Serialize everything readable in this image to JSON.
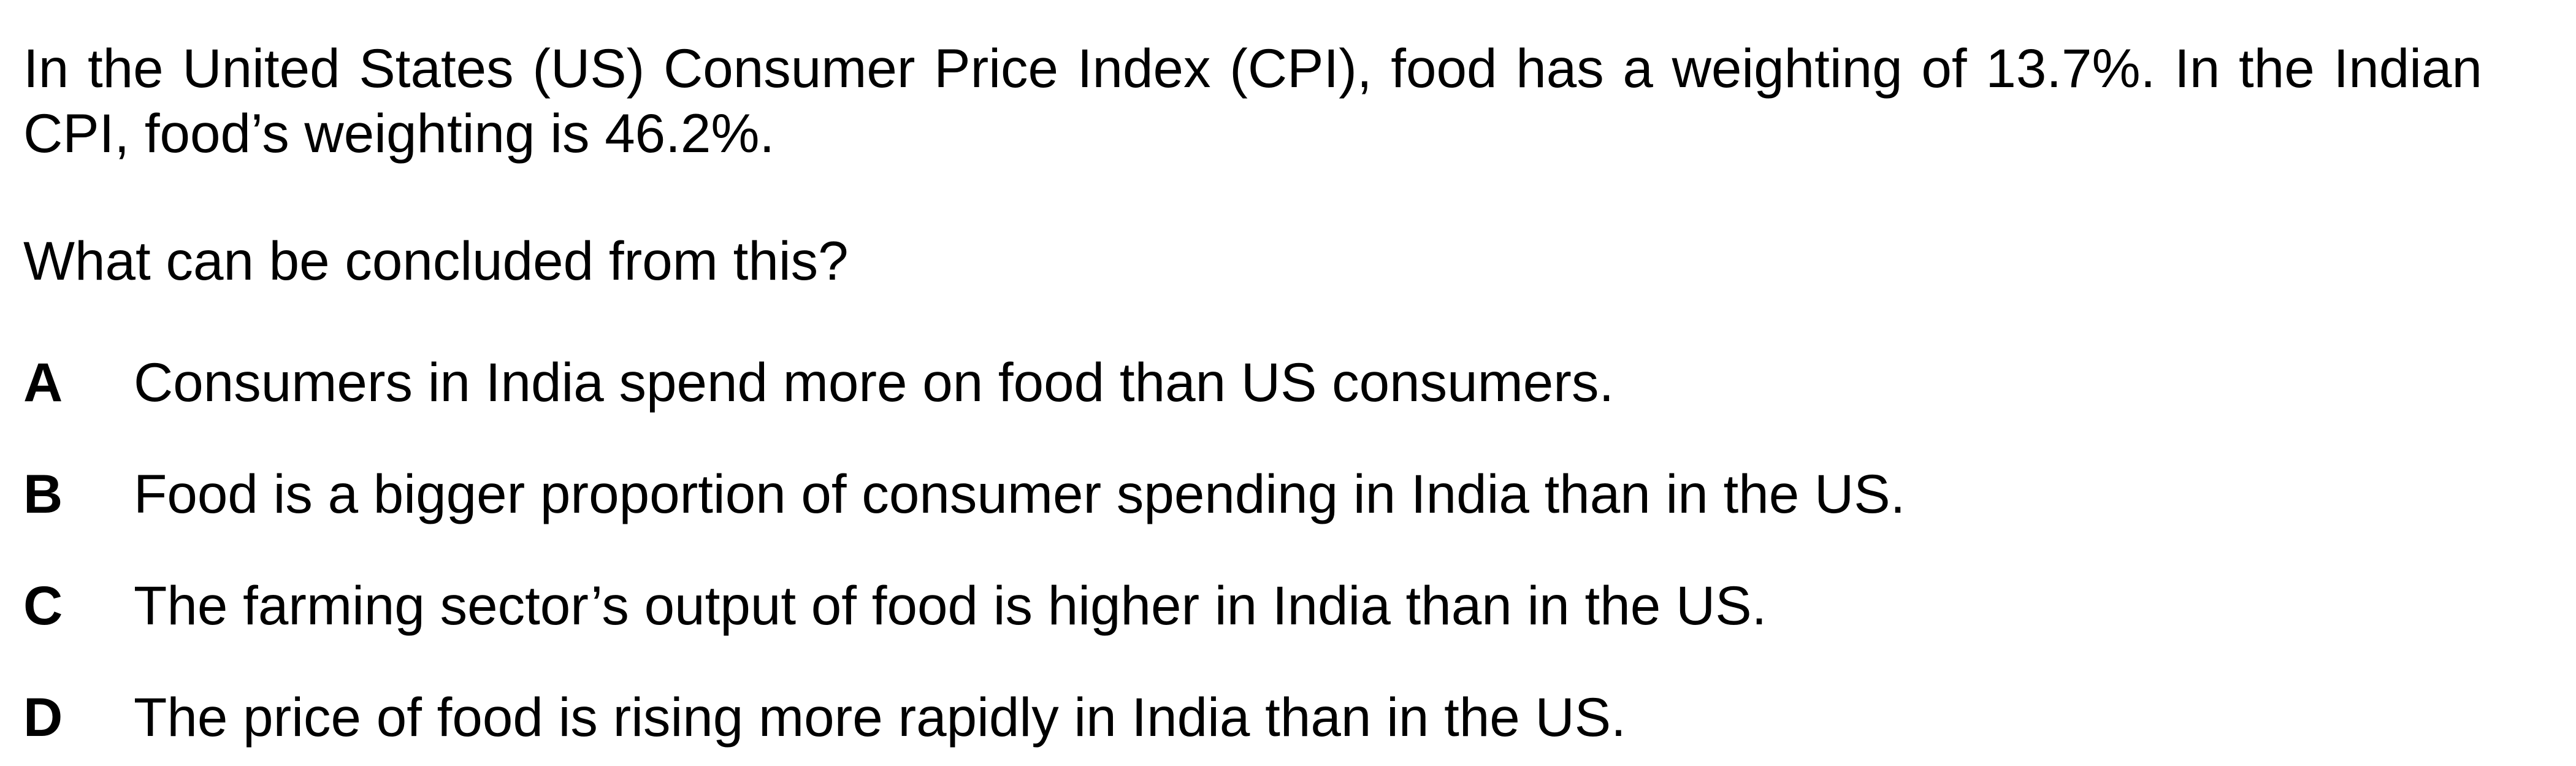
{
  "question": {
    "stem": "In the United States (US) Consumer Price Index (CPI), food has a weighting of 13.7%. In the Indian CPI, food’s weighting is 46.2%.",
    "prompt": "What can be concluded from this?",
    "options": [
      {
        "letter": "A",
        "text": "Consumers in India spend more on food than US consumers."
      },
      {
        "letter": "B",
        "text": "Food is a bigger proportion of consumer spending in India than in the US."
      },
      {
        "letter": "C",
        "text": "The farming sector’s output of food is higher in India than in the US."
      },
      {
        "letter": "D",
        "text": "The price of food is rising more rapidly in India than in the US."
      }
    ]
  }
}
